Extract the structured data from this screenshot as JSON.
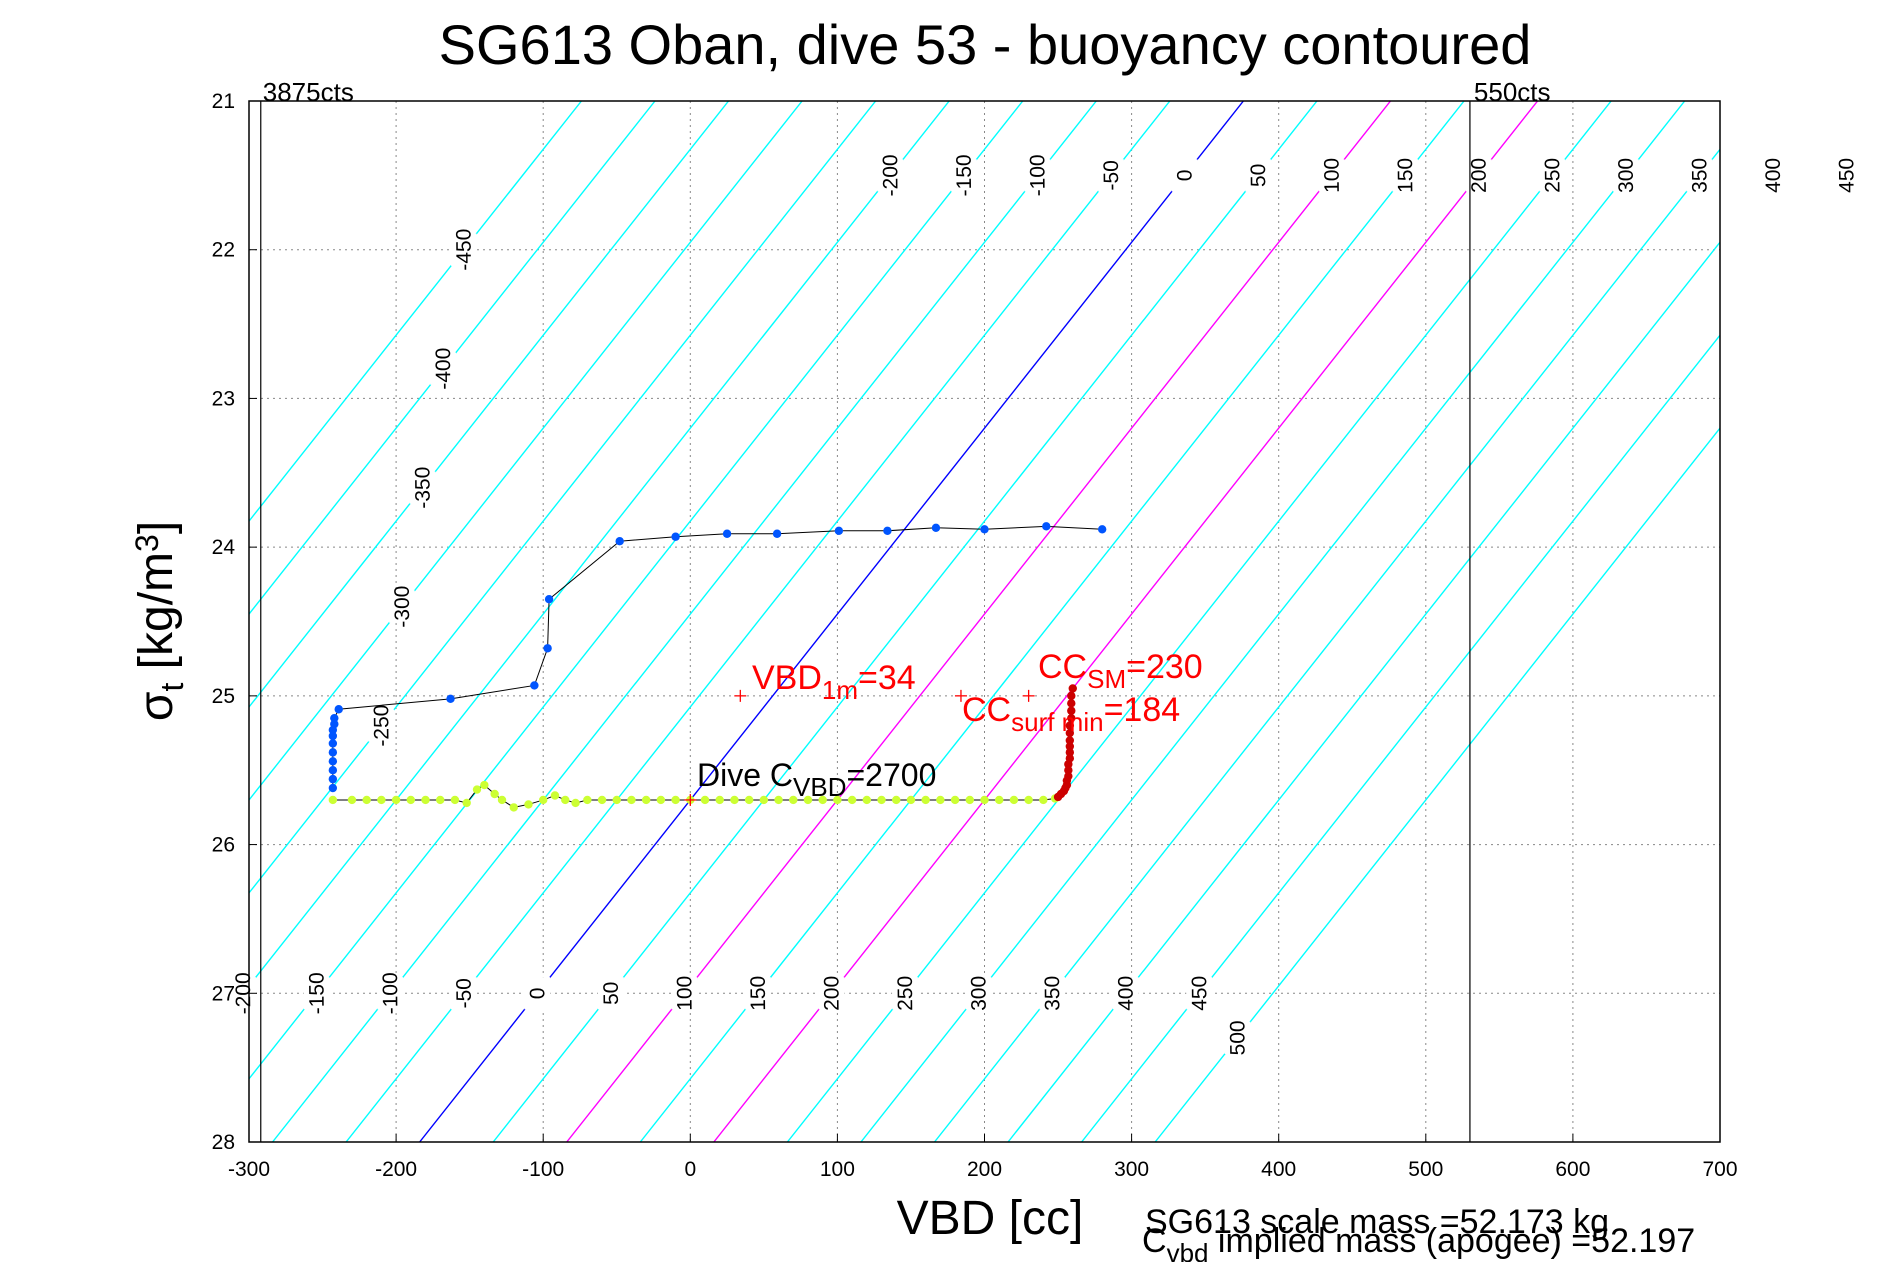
{
  "chart_data": {
    "type": "scatter",
    "title": "SG613 Oban, dive 53 - buoyancy contoured",
    "xlabel": "VBD [cc]",
    "ylabel_main": "σ",
    "ylabel_sub": "t",
    "ylabel_rest": " [kg/m",
    "ylabel_sup": "3",
    "ylabel_end": "]",
    "xlim": [
      -300,
      700
    ],
    "ylim": [
      21,
      28
    ],
    "y_reversed": true,
    "grid": true,
    "xticks": [
      "-300",
      "-200",
      "-100",
      "0",
      "100",
      "200",
      "300",
      "400",
      "500",
      "600",
      "700"
    ],
    "yticks": [
      "21",
      "22",
      "23",
      "24",
      "25",
      "26",
      "27",
      "28"
    ],
    "contour_slope_cc_per_sigma": 80,
    "contours": {
      "cyan_levels": [
        -450,
        -400,
        -350,
        -300,
        -250,
        -200,
        -150,
        -100,
        -50,
        50,
        150,
        250,
        300,
        350,
        400,
        450,
        500
      ],
      "blue_level": 0,
      "magenta_levels": [
        100,
        200
      ],
      "top_labels": [
        "-200",
        "-150",
        "-100",
        "-50",
        "0",
        "50",
        "100",
        "150",
        "200",
        "250",
        "300",
        "350",
        "400",
        "450",
        "500"
      ],
      "left_labels": [
        "-450",
        "-400",
        "-350",
        "-300",
        "-250"
      ],
      "bottom_labels": [
        "-200",
        "-150",
        "-100",
        "-50",
        "0",
        "50",
        "100",
        "150",
        "200",
        "250",
        "300",
        "350",
        "400",
        "450",
        "500"
      ],
      "color_cyan": "#00ffff",
      "color_blue": "#0000ff",
      "color_magenta": "#ff00ff"
    },
    "limit_lines": [
      {
        "label": "3875cts",
        "x": -292
      },
      {
        "label": "550cts",
        "x": 530
      }
    ],
    "series": [
      {
        "points": [
          [
            280,
            23.88
          ],
          [
            242,
            23.86
          ],
          [
            200,
            23.88
          ],
          [
            167,
            23.87
          ],
          [
            134,
            23.89
          ],
          [
            101,
            23.89
          ],
          [
            59,
            23.91
          ],
          [
            25,
            23.91
          ],
          [
            -10,
            23.93
          ],
          [
            -48,
            23.96
          ],
          [
            -96,
            24.35
          ],
          [
            -97,
            24.68
          ],
          [
            -106,
            24.93
          ],
          [
            -163,
            25.02
          ],
          [
            -239,
            25.09
          ],
          [
            -242,
            25.15
          ],
          [
            -242,
            25.19
          ],
          [
            -243,
            25.23
          ],
          [
            -243,
            25.27
          ],
          [
            -243,
            25.32
          ],
          [
            -243,
            25.38
          ],
          [
            -243,
            25.44
          ],
          [
            -243,
            25.5
          ],
          [
            -243,
            25.56
          ],
          [
            -243,
            25.62
          ]
        ],
        "color": "#0055ff"
      },
      {
        "points": [
          [
            -243,
            25.7
          ],
          [
            -230,
            25.7
          ],
          [
            -220,
            25.7
          ],
          [
            -210,
            25.7
          ],
          [
            -200,
            25.7
          ],
          [
            -190,
            25.7
          ],
          [
            -180,
            25.7
          ],
          [
            -170,
            25.7
          ],
          [
            -160,
            25.7
          ],
          [
            -152,
            25.72
          ],
          [
            -145,
            25.63
          ],
          [
            -140,
            25.6
          ],
          [
            -133,
            25.66
          ],
          [
            -128,
            25.7
          ],
          [
            -120,
            25.75
          ],
          [
            -110,
            25.73
          ],
          [
            -100,
            25.7
          ],
          [
            -92,
            25.67
          ],
          [
            -85,
            25.7
          ],
          [
            -78,
            25.72
          ],
          [
            -70,
            25.7
          ],
          [
            -60,
            25.7
          ],
          [
            -50,
            25.7
          ],
          [
            -40,
            25.7
          ],
          [
            -30,
            25.7
          ],
          [
            -20,
            25.7
          ],
          [
            -10,
            25.7
          ],
          [
            0,
            25.7
          ],
          [
            10,
            25.7
          ],
          [
            20,
            25.7
          ],
          [
            30,
            25.7
          ],
          [
            40,
            25.7
          ],
          [
            50,
            25.7
          ],
          [
            60,
            25.7
          ],
          [
            70,
            25.7
          ],
          [
            80,
            25.7
          ],
          [
            90,
            25.7
          ],
          [
            100,
            25.7
          ],
          [
            110,
            25.7
          ],
          [
            120,
            25.7
          ],
          [
            130,
            25.7
          ],
          [
            140,
            25.7
          ],
          [
            150,
            25.7
          ],
          [
            160,
            25.7
          ],
          [
            170,
            25.7
          ],
          [
            180,
            25.7
          ],
          [
            190,
            25.7
          ],
          [
            200,
            25.7
          ],
          [
            210,
            25.7
          ],
          [
            220,
            25.7
          ],
          [
            230,
            25.7
          ],
          [
            240,
            25.7
          ],
          [
            248,
            25.69
          ]
        ],
        "color": "#ccff33"
      },
      {
        "points": [
          [
            250,
            25.68
          ],
          [
            252,
            25.66
          ],
          [
            254,
            25.64
          ],
          [
            255,
            25.62
          ],
          [
            256,
            25.6
          ],
          [
            256,
            25.57
          ],
          [
            257,
            25.54
          ],
          [
            257,
            25.5
          ],
          [
            257,
            25.46
          ],
          [
            258,
            25.42
          ],
          [
            258,
            25.38
          ],
          [
            258,
            25.34
          ],
          [
            258,
            25.3
          ],
          [
            258,
            25.25
          ],
          [
            258,
            25.2
          ],
          [
            259,
            25.15
          ],
          [
            259,
            25.1
          ],
          [
            259,
            25.05
          ],
          [
            259,
            25.0
          ],
          [
            260,
            24.95
          ]
        ],
        "color": "#cc0000"
      }
    ],
    "markers": [
      {
        "name": "VBD_1m",
        "x": 34,
        "y": 25.0
      },
      {
        "name": "CC_surf_min",
        "x": 184,
        "y": 25.0
      },
      {
        "name": "CC_SM",
        "x": 230,
        "y": 25.0
      },
      {
        "name": "Dive_C_VBD",
        "x": 0,
        "y": 25.7
      }
    ],
    "annotations": {
      "vbd1m_main": "VBD",
      "vbd1m_sub": "1m",
      "vbd1m_val": "=34",
      "ccsm_main": "CC",
      "ccsm_sub": "SM",
      "ccsm_val": "=230",
      "ccsurf_main": "CC",
      "ccsurf_sub": "surf min",
      "ccsurf_val": "=184",
      "dive_main": "Dive C",
      "dive_sub": "VBD",
      "dive_val": "=2700"
    },
    "footnote_scale": "SG613 scale mass =52.173 kg",
    "footnote_implied_main": "C",
    "footnote_implied_sub": "vbd",
    "footnote_implied_rest": " implied mass (apogee) =52.197"
  }
}
